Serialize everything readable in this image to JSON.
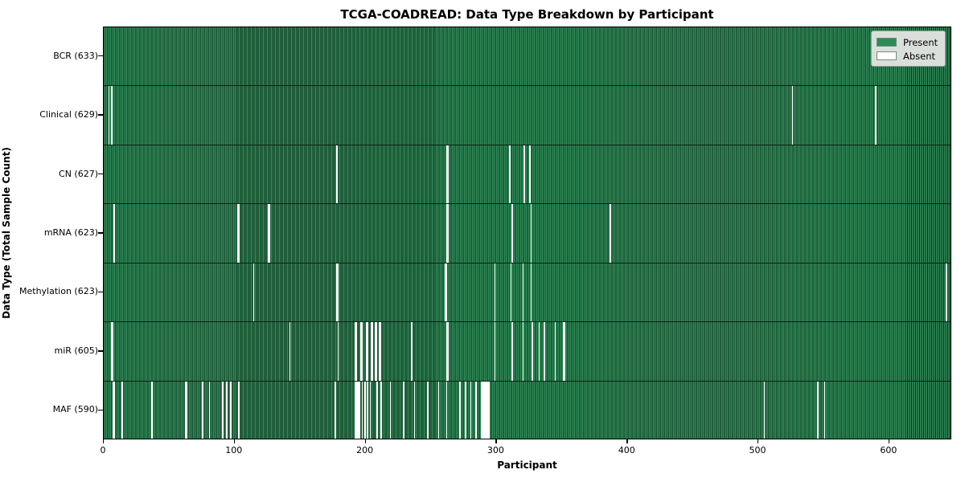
{
  "title": "TCGA-COADREAD: Data Type Breakdown by Participant",
  "xlabel": "Participant",
  "ylabel": "Data Type (Total Sample Count)",
  "legend": {
    "present_label": "Present",
    "absent_label": "Absent"
  },
  "colors": {
    "present": "#2e8b57",
    "present_edge": "#12301f",
    "absent": "#ffffff",
    "axis": "#000000",
    "legend_bg": "#dbdfdb",
    "legend_border": "#9a9a9a",
    "figure_bg": "#ffffff"
  },
  "chart_data": {
    "type": "heatmap",
    "title": "TCGA-COADREAD: Data Type Breakdown by Participant",
    "xlabel": "Participant",
    "ylabel": "Data Type (Total Sample Count)",
    "legend_entries": [
      "Present",
      "Absent"
    ],
    "legend_position": "upper right",
    "n_participants": 633,
    "x_axis_max": 648,
    "xticks": [
      0,
      100,
      200,
      300,
      400,
      500,
      600
    ],
    "rows": [
      {
        "name": "BCR",
        "label": "BCR (633)",
        "count": 633,
        "absent_participants": []
      },
      {
        "name": "Clinical",
        "label": "Clinical (629)",
        "count": 629,
        "absent_participants": [
          4,
          6,
          514,
          576
        ]
      },
      {
        "name": "CN",
        "label": "CN (627)",
        "count": 627,
        "absent_participants": [
          174,
          256,
          257,
          303,
          314,
          318
        ]
      },
      {
        "name": "mRNA",
        "label": "mRNA (623)",
        "count": 623,
        "absent_participants": [
          8,
          100,
          101,
          123,
          124,
          256,
          257,
          305,
          319,
          378
        ]
      },
      {
        "name": "Methylation",
        "label": "Methylation (623)",
        "count": 623,
        "absent_participants": [
          112,
          174,
          175,
          255,
          256,
          292,
          304,
          313,
          319,
          629
        ]
      },
      {
        "name": "miR",
        "label": "miR (605)",
        "count": 605,
        "absent_participants": [
          6,
          7,
          139,
          175,
          188,
          189,
          192,
          193,
          196,
          197,
          200,
          201,
          203,
          204,
          206,
          207,
          230,
          256,
          257,
          292,
          305,
          313,
          320,
          325,
          329,
          337,
          343,
          344
        ]
      },
      {
        "name": "MAF",
        "label": "MAF (590)",
        "count": 590,
        "absent_participants": [
          7,
          8,
          14,
          36,
          61,
          62,
          74,
          79,
          89,
          92,
          95,
          101,
          173,
          188,
          189,
          190,
          191,
          193,
          195,
          197,
          199,
          204,
          207,
          214,
          224,
          232,
          242,
          250,
          256,
          266,
          270,
          274,
          278,
          282,
          283,
          284,
          285,
          286,
          287,
          288,
          493,
          533,
          538
        ]
      }
    ]
  }
}
